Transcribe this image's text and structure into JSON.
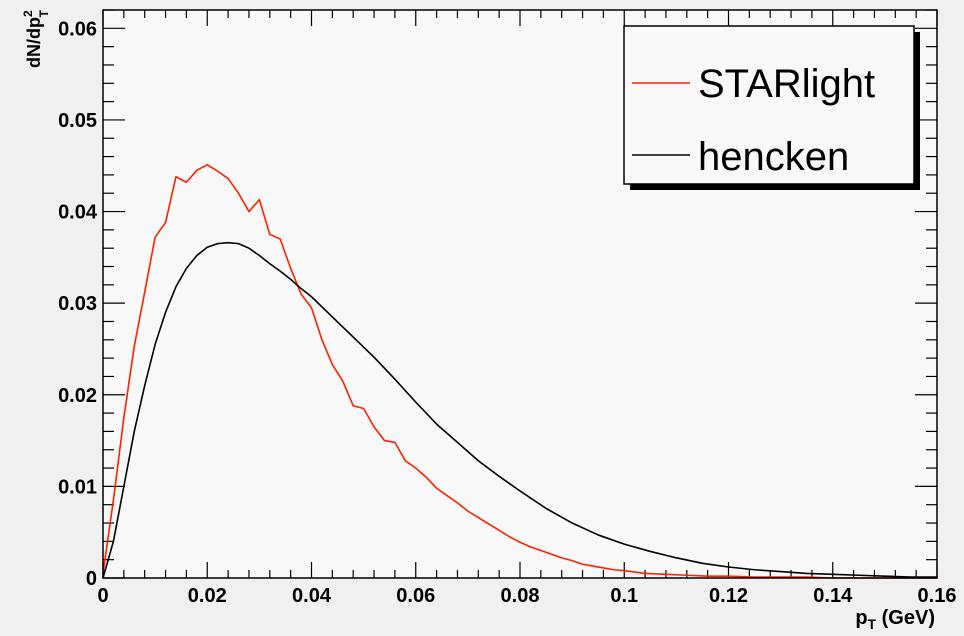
{
  "chart_data": {
    "type": "line",
    "title": "",
    "xlabel": {
      "base": "p",
      "sub": "T",
      "rest": " (GeV)"
    },
    "ylabel": {
      "base": "dN/dp",
      "sup": "2",
      "sub": "T"
    },
    "xlim": [
      0,
      0.16
    ],
    "ylim": [
      0,
      0.062
    ],
    "xticks": [
      {
        "value": 0,
        "label": "0"
      },
      {
        "value": 0.02,
        "label": "0.02"
      },
      {
        "value": 0.04,
        "label": "0.04"
      },
      {
        "value": 0.06,
        "label": "0.06"
      },
      {
        "value": 0.08,
        "label": "0.08"
      },
      {
        "value": 0.1,
        "label": "0.1"
      },
      {
        "value": 0.12,
        "label": "0.12"
      },
      {
        "value": 0.14,
        "label": "0.14"
      },
      {
        "value": 0.16,
        "label": "0.16"
      }
    ],
    "yticks": [
      {
        "value": 0,
        "label": "0"
      },
      {
        "value": 0.01,
        "label": "0.01"
      },
      {
        "value": 0.02,
        "label": "0.02"
      },
      {
        "value": 0.03,
        "label": "0.03"
      },
      {
        "value": 0.04,
        "label": "0.04"
      },
      {
        "value": 0.05,
        "label": "0.05"
      },
      {
        "value": 0.06,
        "label": "0.06"
      }
    ],
    "grid": false,
    "legend_position": "top-right",
    "series": [
      {
        "name": "STARlight",
        "color": "#ff2000",
        "style": "step",
        "x": [
          0,
          0.002,
          0.004,
          0.006,
          0.008,
          0.01,
          0.012,
          0.014,
          0.016,
          0.018,
          0.02,
          0.022,
          0.024,
          0.026,
          0.028,
          0.03,
          0.032,
          0.034,
          0.036,
          0.038,
          0.04,
          0.042,
          0.044,
          0.046,
          0.048,
          0.05,
          0.052,
          0.054,
          0.056,
          0.058,
          0.06,
          0.062,
          0.064,
          0.066,
          0.068,
          0.07,
          0.072,
          0.074,
          0.076,
          0.078,
          0.08,
          0.082,
          0.084,
          0.086,
          0.088,
          0.09,
          0.092,
          0.094,
          0.096,
          0.098,
          0.1,
          0.104,
          0.108,
          0.112,
          0.116,
          0.12,
          0.125,
          0.13,
          0.135,
          0.14,
          0.145,
          0.15,
          0.155,
          0.16
        ],
        "y": [
          0.0005,
          0.0085,
          0.0175,
          0.0253,
          0.0312,
          0.0372,
          0.0388,
          0.0438,
          0.0432,
          0.0445,
          0.0451,
          0.0444,
          0.0436,
          0.042,
          0.04,
          0.0413,
          0.0375,
          0.037,
          0.0338,
          0.031,
          0.0295,
          0.026,
          0.0233,
          0.0215,
          0.0188,
          0.0185,
          0.0165,
          0.015,
          0.0148,
          0.0128,
          0.012,
          0.011,
          0.0098,
          0.009,
          0.0082,
          0.0073,
          0.0066,
          0.0059,
          0.0052,
          0.0045,
          0.0039,
          0.0034,
          0.003,
          0.0026,
          0.0022,
          0.0019,
          0.0015,
          0.0013,
          0.0011,
          0.0009,
          0.0008,
          0.0005,
          0.0004,
          0.0003,
          0.0002,
          0.0002,
          0.0001,
          0.0001,
          0.0001,
          0.0,
          0.0,
          0.0,
          0.0,
          0.0
        ]
      },
      {
        "name": "hencken",
        "color": "#000000",
        "style": "smooth",
        "x": [
          0,
          0.002,
          0.004,
          0.006,
          0.008,
          0.01,
          0.012,
          0.014,
          0.016,
          0.018,
          0.02,
          0.022,
          0.024,
          0.026,
          0.028,
          0.03,
          0.032,
          0.034,
          0.036,
          0.038,
          0.04,
          0.044,
          0.048,
          0.052,
          0.056,
          0.06,
          0.064,
          0.068,
          0.072,
          0.076,
          0.08,
          0.085,
          0.09,
          0.095,
          0.1,
          0.105,
          0.11,
          0.115,
          0.12,
          0.125,
          0.13,
          0.135,
          0.14,
          0.145,
          0.15,
          0.155,
          0.16
        ],
        "y": [
          0.0,
          0.004,
          0.01,
          0.016,
          0.021,
          0.0255,
          0.029,
          0.0318,
          0.0338,
          0.0352,
          0.0361,
          0.0365,
          0.0366,
          0.0365,
          0.036,
          0.0352,
          0.0343,
          0.0335,
          0.0326,
          0.0316,
          0.0307,
          0.0285,
          0.0263,
          0.0241,
          0.0217,
          0.0192,
          0.0168,
          0.0148,
          0.0128,
          0.0111,
          0.0095,
          0.0076,
          0.006,
          0.0047,
          0.0037,
          0.0029,
          0.0022,
          0.0016,
          0.0012,
          0.0009,
          0.0007,
          0.0005,
          0.0004,
          0.0003,
          0.0002,
          0.0001,
          0.0001
        ]
      }
    ]
  }
}
